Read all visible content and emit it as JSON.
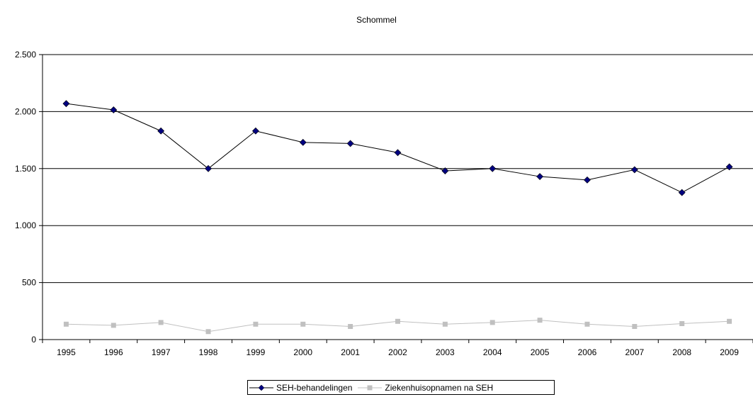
{
  "chart_data": {
    "type": "line",
    "title": "Schommel",
    "xlabel": "",
    "ylabel": "",
    "categories": [
      "1995",
      "1996",
      "1997",
      "1998",
      "1999",
      "2000",
      "2001",
      "2002",
      "2003",
      "2004",
      "2005",
      "2006",
      "2007",
      "2008",
      "2009"
    ],
    "ylim": [
      0,
      2500
    ],
    "yticks": [
      0,
      500,
      1000,
      1500,
      2000,
      2500
    ],
    "ytick_labels": [
      "0",
      "500",
      "1.000",
      "1.500",
      "2.000",
      "2.500"
    ],
    "grid": true,
    "legend_position": "bottom",
    "series": [
      {
        "name": "SEH-behandelingen",
        "color": "#000080",
        "marker": "diamond",
        "values": [
          2070,
          2015,
          1830,
          1500,
          1830,
          1730,
          1720,
          1640,
          1480,
          1500,
          1430,
          1400,
          1490,
          1290,
          1515
        ]
      },
      {
        "name": "Ziekenhuisopnamen na SEH",
        "color": "#c0c0c0",
        "marker": "square",
        "values": [
          135,
          125,
          150,
          70,
          135,
          135,
          115,
          160,
          135,
          150,
          170,
          135,
          115,
          140,
          160
        ]
      }
    ]
  }
}
